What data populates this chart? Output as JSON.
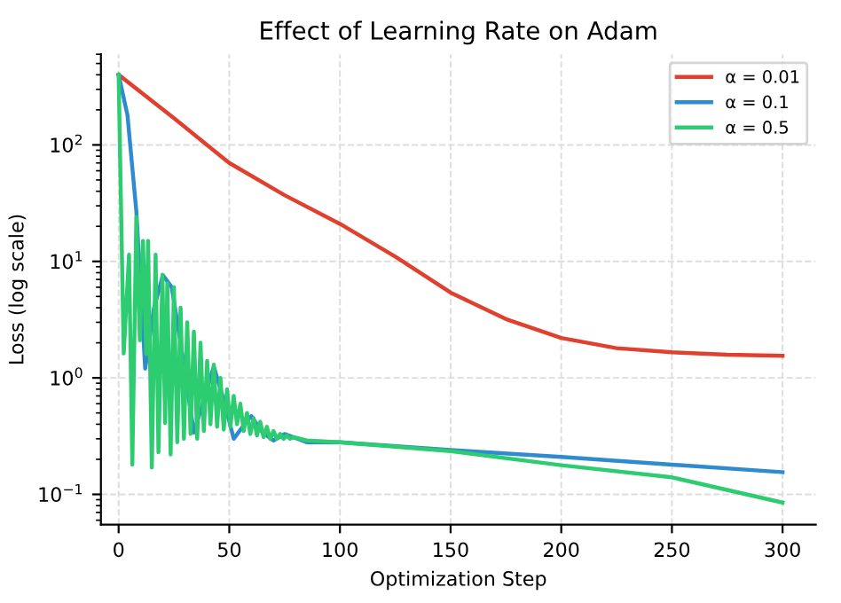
{
  "chart_data": {
    "type": "line",
    "title": "Effect of Learning Rate on Adam",
    "xlabel": "Optimization Step",
    "ylabel": "Loss (log scale)",
    "log": "y",
    "grid": true,
    "legend": "top right",
    "marker": "none",
    "line_style": "solid",
    "xlim": [
      -8,
      315
    ],
    "xticks": [
      0,
      50,
      100,
      150,
      200,
      250,
      300
    ],
    "ylim": [
      0.055,
      600
    ],
    "yticks": [
      {
        "value": 0.1,
        "label": "10$^{−1}$"
      },
      {
        "value": 1,
        "label": "10$^{0}$"
      },
      {
        "value": 10,
        "label": "10$^{1}$"
      },
      {
        "value": 100,
        "label": "10$^{2}$"
      }
    ],
    "series": [
      {
        "name": "α = 0.01",
        "color": "#e0402e",
        "x": [
          0,
          25,
          50,
          75,
          100,
          125,
          150,
          175,
          200,
          225,
          250,
          275,
          300
        ],
        "values": [
          400,
          170,
          70,
          37,
          21,
          11,
          5.4,
          3.2,
          2.2,
          1.8,
          1.66,
          1.58,
          1.55
        ]
      },
      {
        "name": "α = 0.1",
        "color": "#2e8bd0",
        "x": [
          0,
          4,
          8,
          12,
          16,
          20,
          24,
          28,
          34,
          38,
          43,
          48,
          52,
          56,
          60,
          65,
          70,
          75,
          85,
          100,
          150,
          200,
          250,
          300
        ],
        "values": [
          400,
          180,
          27,
          1.2,
          4,
          7.6,
          6,
          2,
          0.34,
          0.6,
          1.25,
          0.6,
          0.3,
          0.38,
          0.47,
          0.34,
          0.29,
          0.33,
          0.28,
          0.28,
          0.24,
          0.21,
          0.18,
          0.155
        ]
      },
      {
        "name": "α = 0.5",
        "color": "#2ecc71",
        "x": [
          0,
          2.3,
          4.7,
          6.2,
          8,
          9.6,
          11,
          12.5,
          13.3,
          15,
          16.7,
          18,
          19.8,
          21,
          22,
          23.5,
          25,
          26.5,
          28,
          29.5,
          31,
          32.5,
          34,
          35.5,
          37,
          38.5,
          40,
          41.5,
          43,
          44.5,
          46,
          47.5,
          49,
          50.5,
          52,
          53.5,
          55,
          56.5,
          58,
          59.5,
          61,
          62.5,
          64,
          65.5,
          67,
          68.5,
          70,
          71.5,
          73,
          74.5,
          76,
          77.5,
          79,
          85,
          100,
          150,
          200,
          250,
          300
        ],
        "values": [
          400,
          1.62,
          11.4,
          0.18,
          24,
          2.1,
          15,
          1.6,
          15,
          0.17,
          11.4,
          0.23,
          7.7,
          0.41,
          6.5,
          0.22,
          6,
          0.28,
          4,
          0.3,
          3,
          0.33,
          2.5,
          0.3,
          2,
          0.35,
          1.4,
          0.4,
          1.3,
          0.38,
          1.0,
          0.36,
          0.8,
          0.38,
          0.7,
          0.4,
          0.6,
          0.35,
          0.5,
          0.33,
          0.45,
          0.32,
          0.42,
          0.31,
          0.38,
          0.3,
          0.35,
          0.3,
          0.33,
          0.3,
          0.32,
          0.3,
          0.31,
          0.29,
          0.28,
          0.235,
          0.178,
          0.14,
          0.085
        ]
      }
    ]
  }
}
